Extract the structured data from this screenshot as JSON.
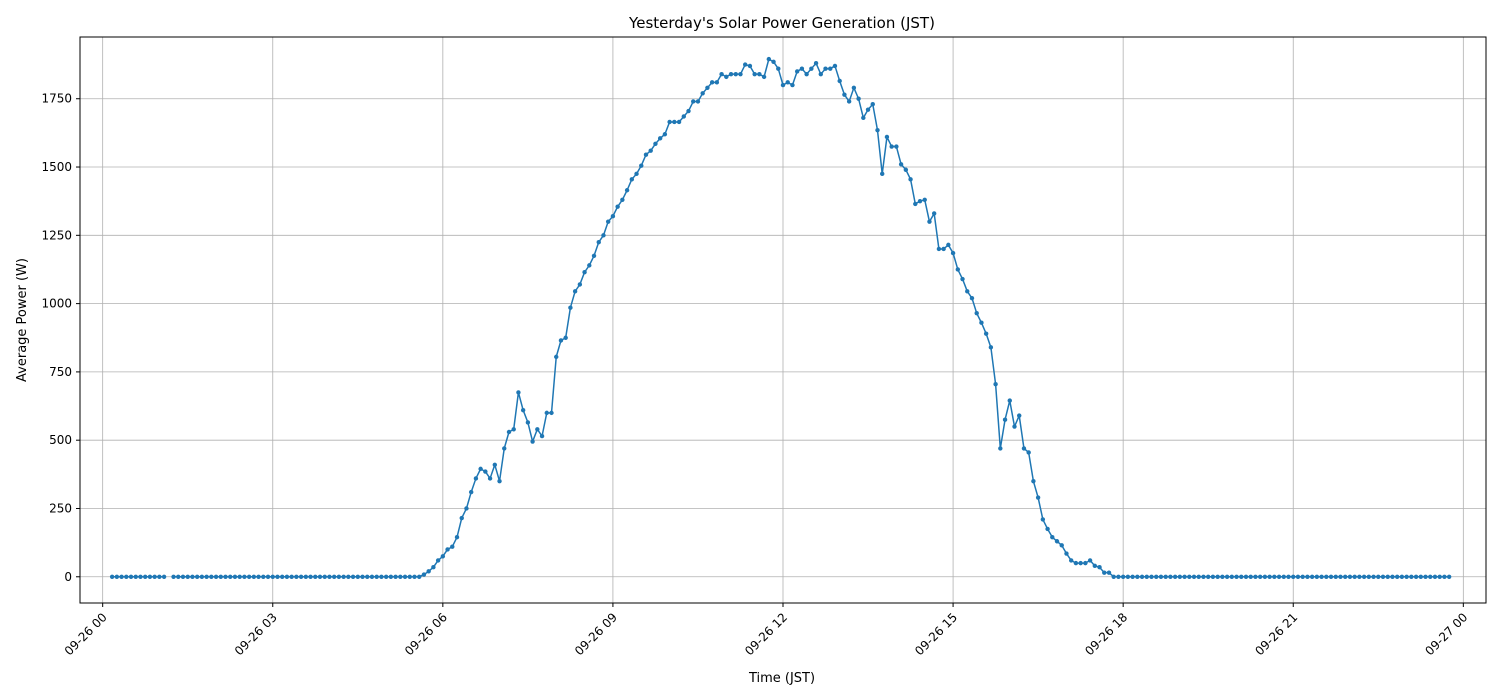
{
  "chart_data": {
    "type": "line",
    "title": "Yesterday's Solar Power Generation (JST)",
    "xlabel": "Time (JST)",
    "ylabel": "Average Power (W)",
    "xlim": [
      "09-25 23:36",
      "09-27 00:24"
    ],
    "ylim": [
      -96,
      1976
    ],
    "grid": true,
    "x_ticks": [
      "09-26 00",
      "09-26 03",
      "09-26 06",
      "09-26 09",
      "09-26 12",
      "09-26 15",
      "09-26 18",
      "09-26 21",
      "09-27 00"
    ],
    "y_ticks": [
      0,
      250,
      500,
      750,
      1000,
      1250,
      1500,
      1750
    ],
    "series": [
      {
        "color": "#1f77b4",
        "marker": "circle",
        "start": "09-26 00:10",
        "interval_minutes": 5,
        "values": [
          0,
          0,
          0,
          0,
          0,
          0,
          0,
          0,
          0,
          0,
          0,
          0,
          null,
          0,
          0,
          0,
          0,
          0,
          0,
          0,
          0,
          0,
          0,
          0,
          0,
          0,
          0,
          0,
          0,
          0,
          0,
          0,
          0,
          0,
          0,
          0,
          0,
          0,
          0,
          0,
          0,
          0,
          0,
          0,
          0,
          0,
          0,
          0,
          0,
          0,
          0,
          0,
          0,
          0,
          0,
          0,
          0,
          0,
          0,
          0,
          0,
          0,
          0,
          0,
          0,
          0,
          8,
          20,
          35,
          60,
          75,
          100,
          110,
          145,
          215,
          250,
          310,
          360,
          395,
          385,
          360,
          410,
          350,
          470,
          530,
          540,
          675,
          610,
          565,
          495,
          540,
          515,
          600,
          600,
          805,
          865,
          875,
          985,
          1045,
          1070,
          1115,
          1140,
          1175,
          1225,
          1250,
          1300,
          1320,
          1355,
          1380,
          1415,
          1455,
          1475,
          1505,
          1545,
          1560,
          1585,
          1605,
          1620,
          1665,
          1665,
          1665,
          1685,
          1705,
          1740,
          1740,
          1770,
          1790,
          1810,
          1810,
          1840,
          1830,
          1840,
          1840,
          1840,
          1875,
          1870,
          1840,
          1840,
          1830,
          1895,
          1885,
          1860,
          1800,
          1810,
          1800,
          1850,
          1860,
          1840,
          1860,
          1880,
          1840,
          1860,
          1860,
          1870,
          1815,
          1765,
          1740,
          1790,
          1750,
          1680,
          1710,
          1730,
          1635,
          1475,
          1610,
          1575,
          1575,
          1510,
          1490,
          1455,
          1365,
          1375,
          1380,
          1300,
          1330,
          1200,
          1200,
          1215,
          1185,
          1125,
          1090,
          1045,
          1020,
          965,
          930,
          890,
          840,
          705,
          470,
          575,
          645,
          550,
          590,
          470,
          455,
          350,
          290,
          210,
          175,
          145,
          130,
          115,
          85,
          60,
          50,
          50,
          50,
          60,
          40,
          35,
          15,
          15,
          0,
          0,
          0,
          0,
          0,
          0,
          0,
          0,
          0,
          0,
          0,
          0,
          0,
          0,
          0,
          0,
          0,
          0,
          0,
          0,
          0,
          0,
          0,
          0,
          0,
          0,
          0,
          0,
          0,
          0,
          0,
          0,
          0,
          0,
          0,
          0,
          0,
          0,
          0,
          0,
          0,
          0,
          0,
          0,
          0,
          0,
          0,
          0,
          0,
          0,
          0,
          0,
          0,
          0,
          0,
          0,
          0,
          0,
          0,
          0,
          0,
          0,
          0,
          0,
          0,
          0,
          0,
          0,
          0,
          0,
          0,
          0
        ]
      }
    ]
  }
}
